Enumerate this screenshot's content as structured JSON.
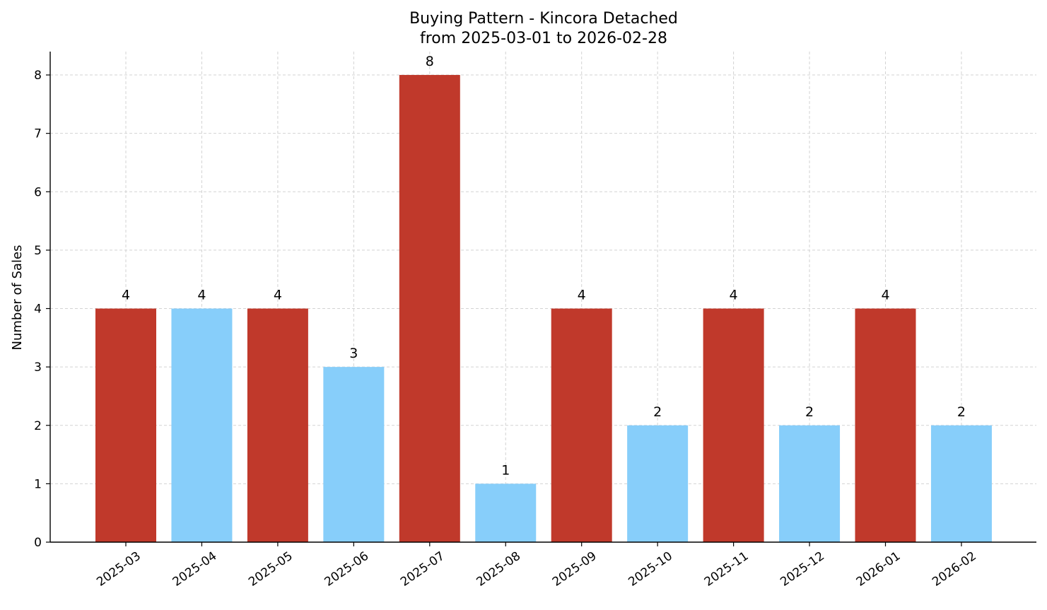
{
  "chart_data": {
    "type": "bar",
    "title_line1": "Buying Pattern - Kincora Detached",
    "title_line2": "from 2025-03-01 to 2026-02-28",
    "xlabel": "",
    "ylabel": "Number of Sales",
    "categories": [
      "2025-03",
      "2025-04",
      "2025-05",
      "2025-06",
      "2025-07",
      "2025-08",
      "2025-09",
      "2025-10",
      "2025-11",
      "2025-12",
      "2026-01",
      "2026-02"
    ],
    "values": [
      4,
      4,
      4,
      3,
      8,
      1,
      4,
      2,
      4,
      2,
      4,
      2
    ],
    "bar_colors": [
      "#c0392b",
      "#87cefa",
      "#c0392b",
      "#87cefa",
      "#c0392b",
      "#87cefa",
      "#c0392b",
      "#87cefa",
      "#c0392b",
      "#87cefa",
      "#c0392b",
      "#87cefa"
    ],
    "yticks": [
      0,
      1,
      2,
      3,
      4,
      5,
      6,
      7,
      8
    ],
    "ylim": [
      0,
      8.4
    ],
    "grid": true,
    "grid_style": "dashed",
    "data_labels": true
  }
}
